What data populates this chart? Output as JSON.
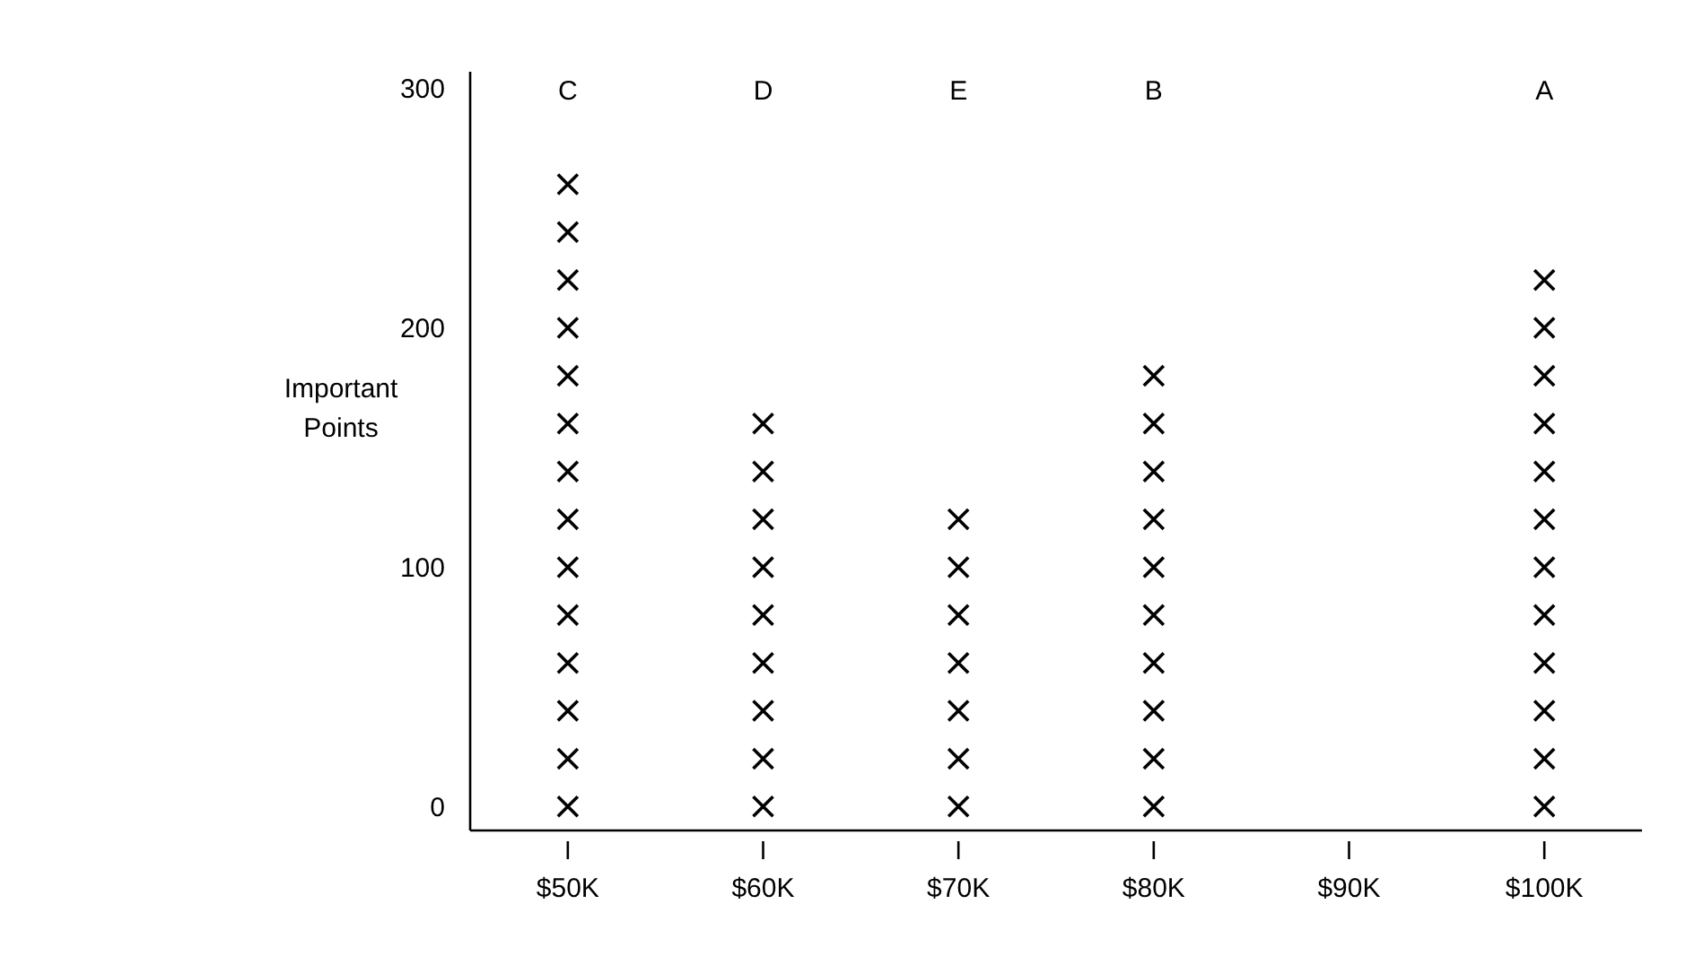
{
  "chart_data": {
    "type": "scatter",
    "ylabel": "Important Points",
    "marker": "cross",
    "grid": false,
    "xlim": [
      45,
      105
    ],
    "xticks": [
      {
        "value": 50,
        "label": "$50K"
      },
      {
        "value": 60,
        "label": "$60K"
      },
      {
        "value": 70,
        "label": "$70K"
      },
      {
        "value": 80,
        "label": "$80K"
      },
      {
        "value": 90,
        "label": "$90K"
      },
      {
        "value": 100,
        "label": "$100K"
      }
    ],
    "ylim": [
      -10,
      307
    ],
    "yticks": [
      0,
      100,
      200,
      300
    ],
    "annotations": [
      "C",
      "D",
      "E",
      "B",
      "A"
    ],
    "series": [
      {
        "color": "#000000",
        "x": [
          50,
          50,
          50,
          50,
          50,
          50,
          50,
          50,
          50,
          50,
          50,
          50,
          50,
          50
        ],
        "values": [
          0,
          20,
          40,
          60,
          80,
          100,
          120,
          140,
          160,
          180,
          200,
          220,
          240,
          260
        ]
      },
      {
        "color": "#000000",
        "x": [
          60,
          60,
          60,
          60,
          60,
          60,
          60,
          60,
          60
        ],
        "values": [
          0,
          20,
          40,
          60,
          80,
          100,
          120,
          140,
          160
        ]
      },
      {
        "color": "#000000",
        "x": [
          70,
          70,
          70,
          70,
          70,
          70,
          70
        ],
        "values": [
          0,
          20,
          40,
          60,
          80,
          100,
          120
        ]
      },
      {
        "color": "#000000",
        "x": [
          80,
          80,
          80,
          80,
          80,
          80,
          80,
          80,
          80,
          80
        ],
        "values": [
          0,
          20,
          40,
          60,
          80,
          100,
          120,
          140,
          160,
          180
        ]
      },
      {
        "color": "#000000",
        "x": [
          100,
          100,
          100,
          100,
          100,
          100,
          100,
          100,
          100,
          100,
          100,
          100
        ],
        "values": [
          0,
          20,
          40,
          60,
          80,
          100,
          120,
          140,
          160,
          180,
          200,
          220
        ]
      }
    ]
  }
}
